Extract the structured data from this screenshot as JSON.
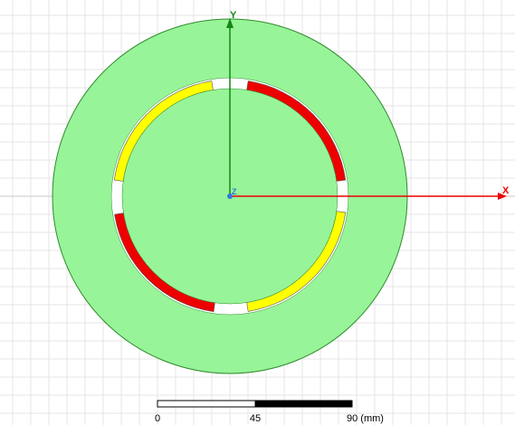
{
  "colors": {
    "background": "#ffffff",
    "grid_minor": "#e4e4e4",
    "grid_major": "#c8c8c8",
    "stator_fill": "#98f498",
    "stator_stroke": "#2e8b2e",
    "rotor_fill": "#98f498",
    "gap": "#ffffff",
    "magnet_yellow": "#ffff00",
    "magnet_red": "#ee0000",
    "magnet_stroke": "#555555",
    "x_axis": "#ee0000",
    "y_axis": "#118811",
    "origin_dot": "#3377dd"
  },
  "axes": {
    "x_label": "X",
    "y_label": "Y",
    "z_label": "Z"
  },
  "magnets": [
    {
      "name": "magnet-top-left",
      "color": "yellow"
    },
    {
      "name": "magnet-top-right",
      "color": "red"
    },
    {
      "name": "magnet-bottom-left",
      "color": "red"
    },
    {
      "name": "magnet-bottom-right",
      "color": "yellow"
    }
  ],
  "scale_bar": {
    "label_start": "0",
    "label_mid": "45",
    "label_end": "90 (mm)"
  }
}
